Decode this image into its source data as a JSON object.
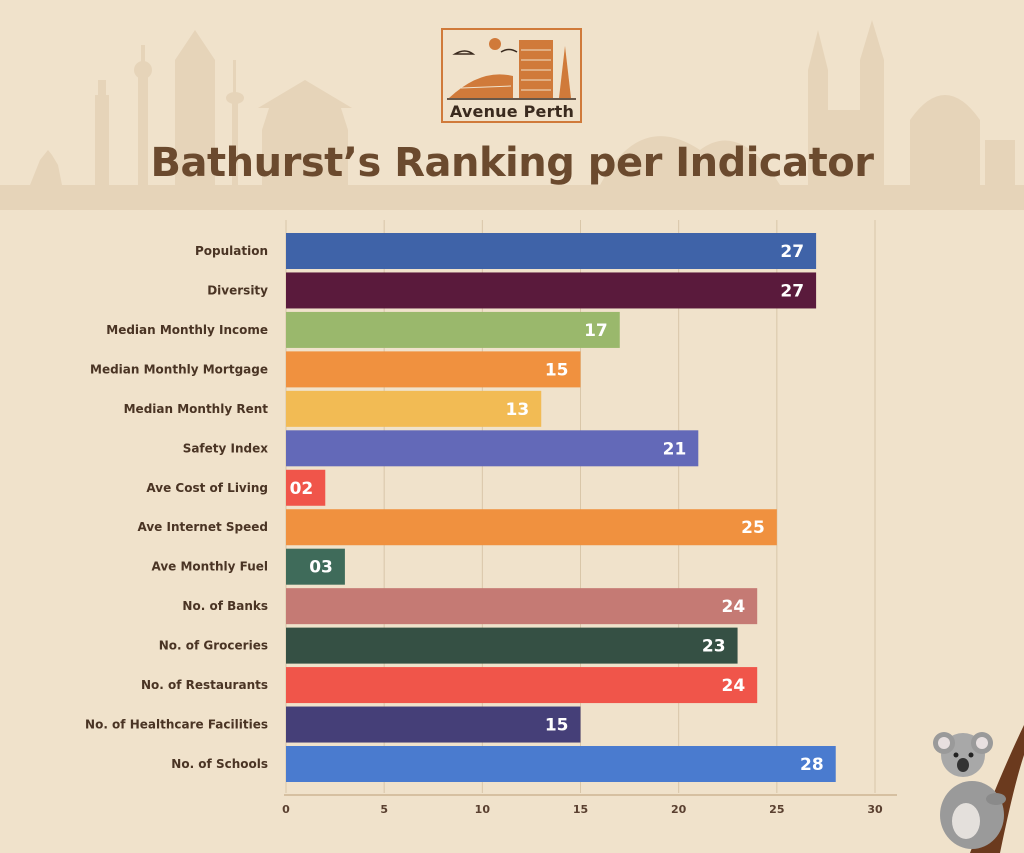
{
  "brand": {
    "name": "Avenue Perth"
  },
  "chart_data": {
    "type": "bar",
    "orientation": "horizontal",
    "title": "Bathurst’s Ranking per Indicator",
    "categories": [
      "Population",
      "Diversity",
      "Median Monthly Income",
      "Median Monthly Mortgage",
      "Median Monthly Rent",
      "Safety Index",
      "Ave Cost of Living",
      "Ave Internet Speed",
      "Ave Monthly Fuel",
      "No. of Banks",
      "No. of Groceries",
      "No. of Restaurants",
      "No. of Healthcare Facilities",
      "No. of Schools"
    ],
    "values": [
      27,
      27,
      17,
      15,
      13,
      21,
      2,
      25,
      3,
      24,
      23,
      24,
      15,
      28
    ],
    "value_labels": [
      "27",
      "27",
      "17",
      "15",
      "13",
      "21",
      "02",
      "25",
      "03",
      "24",
      "23",
      "24",
      "15",
      "28"
    ],
    "colors": [
      "#3f63a8",
      "#5a1a3c",
      "#9ab86c",
      "#f0913f",
      "#f2bb54",
      "#6369b8",
      "#f0554a",
      "#f0913f",
      "#3f6b5a",
      "#c57a74",
      "#355044",
      "#f0554a",
      "#453f78",
      "#4a7bcf"
    ],
    "xlim": [
      0,
      30
    ],
    "xticks": [
      0,
      5,
      10,
      15,
      20,
      25,
      30
    ],
    "grid": true,
    "xlabel": "",
    "ylabel": ""
  }
}
